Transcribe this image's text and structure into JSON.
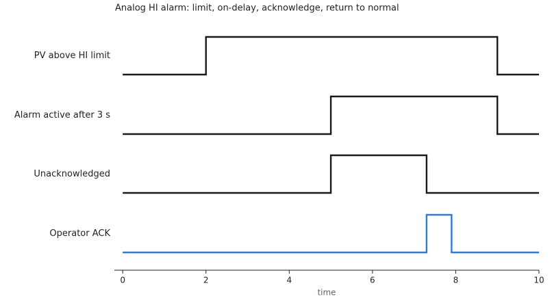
{
  "chart_data": {
    "type": "timing",
    "title": "Analog HI alarm: limit, on-delay, acknowledge, return to normal",
    "xlabel": "time",
    "xlim": [
      -0.2,
      10
    ],
    "xticks": [
      0,
      2,
      4,
      6,
      8,
      10
    ],
    "series": [
      {
        "name": "PV above HI limit",
        "color": "#1a1a1a",
        "x": [
          0,
          2,
          2,
          9,
          9,
          10
        ],
        "values": [
          0,
          0,
          1,
          1,
          0,
          0
        ]
      },
      {
        "name": "Alarm active after 3 s",
        "color": "#1a1a1a",
        "x": [
          0,
          5,
          5,
          9,
          9,
          10
        ],
        "values": [
          0,
          0,
          1,
          1,
          0,
          0
        ]
      },
      {
        "name": "Unacknowledged",
        "color": "#1a1a1a",
        "x": [
          0,
          5,
          5,
          7.3,
          7.3,
          10
        ],
        "values": [
          0,
          0,
          1,
          1,
          0,
          0
        ]
      },
      {
        "name": "Operator ACK",
        "color": "#2f7bd0",
        "x": [
          0,
          7.3,
          7.3,
          7.9,
          7.9,
          10
        ],
        "values": [
          0,
          0,
          1,
          1,
          0,
          0
        ]
      }
    ]
  }
}
